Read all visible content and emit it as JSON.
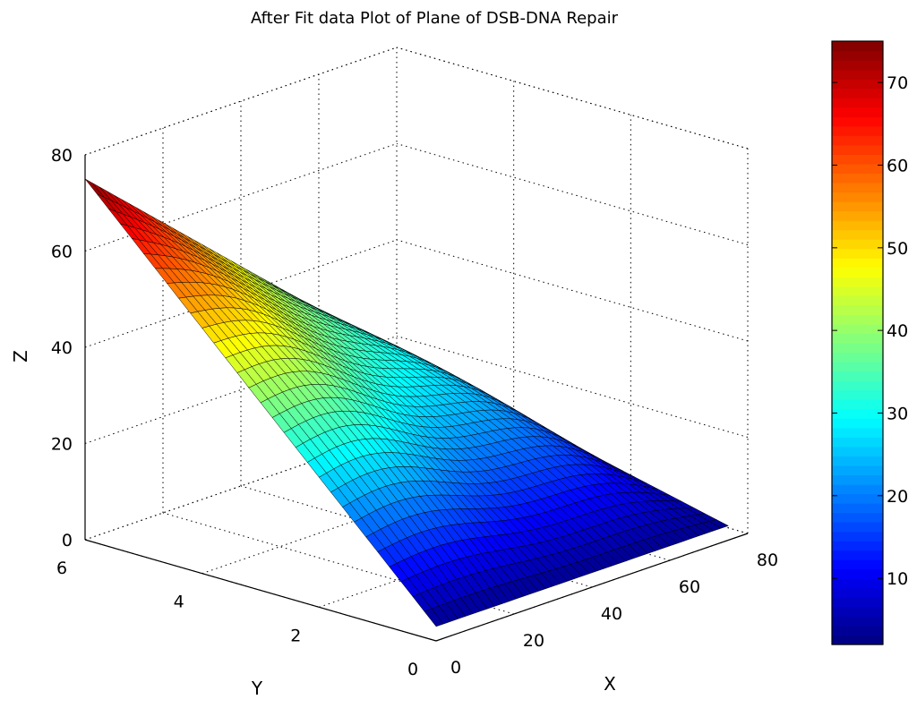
{
  "chart_data": {
    "type": "surface",
    "title": "After Fit data Plot of Plane of DSB-DNA Repair",
    "xlabel": "X",
    "ylabel": "Y",
    "zlabel": "Z",
    "x_ticks": [
      "0",
      "20",
      "40",
      "60",
      "80"
    ],
    "y_ticks": [
      "0",
      "2",
      "4",
      "6"
    ],
    "z_ticks": [
      "0",
      "20",
      "40",
      "60",
      "80"
    ],
    "xlim": [
      0,
      80
    ],
    "ylim": [
      0,
      6
    ],
    "zlim": [
      0,
      80
    ],
    "grid": true,
    "colormap": "jet",
    "colorbar": {
      "ticks": [
        "10",
        "20",
        "30",
        "40",
        "50",
        "60",
        "70"
      ],
      "range": [
        2,
        75
      ],
      "placement": "right"
    },
    "corner_values": [
      {
        "x": 0,
        "y": 0,
        "z": 3
      },
      {
        "x": 75,
        "y": 0,
        "z": 3
      },
      {
        "x": 0,
        "y": 6,
        "z": 75
      },
      {
        "x": 75,
        "y": 6,
        "z": 20
      }
    ]
  }
}
